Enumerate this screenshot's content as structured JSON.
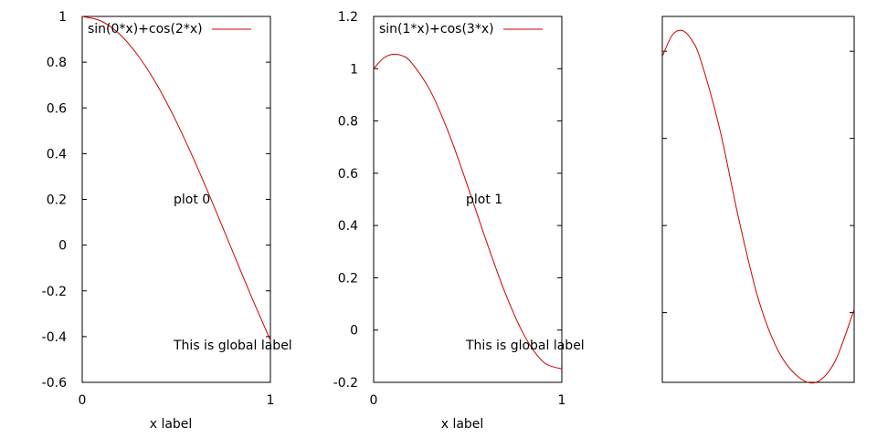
{
  "chart_data": [
    {
      "type": "line",
      "xlim": [
        0,
        1
      ],
      "ylim": [
        -0.6,
        1
      ],
      "xticks": [
        "0",
        "1"
      ],
      "yticks": [
        "1",
        "0.8",
        "0.6",
        "0.4",
        "0.2",
        "0",
        "-0.2",
        "-0.4",
        "-0.6"
      ],
      "ytick_values": [
        1,
        0.8,
        0.6,
        0.4,
        0.2,
        0,
        -0.2,
        -0.4,
        -0.6
      ],
      "xlabel": "x label",
      "show_tick_labels": true,
      "legend": "top-left",
      "series": [
        {
          "name": "sin(0*x)+cos(2*x)",
          "color": "#cc0000",
          "x": [
            0,
            0.1,
            0.2,
            0.3,
            0.4,
            0.5,
            0.6,
            0.7,
            0.8,
            0.9,
            1.0
          ],
          "values": [
            1.0,
            0.98,
            0.921,
            0.825,
            0.697,
            0.54,
            0.362,
            0.17,
            -0.029,
            -0.227,
            -0.416
          ]
        }
      ],
      "annotations": [
        "plot 0",
        "This is global label"
      ]
    },
    {
      "type": "line",
      "xlim": [
        0,
        1
      ],
      "ylim": [
        -0.2,
        1.2
      ],
      "xticks": [
        "0",
        "1"
      ],
      "yticks": [
        "1.2",
        "1",
        "0.8",
        "0.6",
        "0.4",
        "0.2",
        "0",
        "-0.2"
      ],
      "ytick_values": [
        1.2,
        1,
        0.8,
        0.6,
        0.4,
        0.2,
        0,
        -0.2
      ],
      "xlabel": "x label",
      "show_tick_labels": true,
      "legend": "top-left",
      "series": [
        {
          "name": "sin(1*x)+cos(3*x)",
          "color": "#cc0000",
          "x": [
            0,
            0.05,
            0.1,
            0.15,
            0.2,
            0.3,
            0.4,
            0.5,
            0.6,
            0.7,
            0.8,
            0.9,
            1.0
          ],
          "values": [
            1.0,
            1.039,
            1.055,
            1.05,
            1.024,
            0.917,
            0.752,
            0.55,
            0.338,
            0.14,
            -0.02,
            -0.121,
            -0.149
          ]
        }
      ],
      "annotations": [
        "plot 1",
        "This is global label"
      ]
    },
    {
      "type": "line",
      "xlim": [
        0,
        1
      ],
      "ylim": [
        -0.9,
        1.2
      ],
      "xticks": [],
      "yticks": [],
      "ytick_values": [
        1,
        0.5,
        0,
        -0.5
      ],
      "xlabel": "",
      "show_tick_labels": false,
      "legend": "",
      "series": [
        {
          "name": "",
          "color": "#cc0000",
          "x": [
            0,
            0.05,
            0.1,
            0.15,
            0.2,
            0.3,
            0.4,
            0.5,
            0.6,
            0.7,
            0.8,
            0.9,
            1.0
          ],
          "values": [
            0.97,
            1.09,
            1.12,
            1.07,
            0.95,
            0.55,
            0.03,
            -0.42,
            -0.71,
            -0.86,
            -0.9,
            -0.78,
            -0.48
          ]
        }
      ],
      "annotations": []
    }
  ]
}
